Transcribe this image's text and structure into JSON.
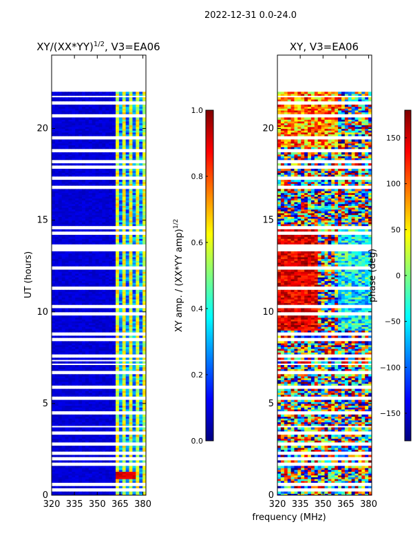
{
  "suptitle": "2022-12-31 0.0-24.0",
  "shared_xlabel": "frequency (MHz)",
  "chart_data": [
    {
      "type": "heatmap",
      "title_main": "XY/(XX*YY)",
      "title_exp": "1/2",
      "title_suffix": ", V3=EA06",
      "xlabel": "",
      "ylabel": "UT (hours)",
      "xlim": [
        320,
        382
      ],
      "ylim": [
        0,
        24
      ],
      "xticks": [
        320,
        335,
        350,
        365,
        380
      ],
      "yticks": [
        0,
        5,
        10,
        15,
        20
      ],
      "colorbar": {
        "label_main": "XY amp. / (XX*YY amp)",
        "label_exp": "1/2",
        "range": [
          0.0,
          1.0
        ],
        "ticks": [
          "0.0",
          "0.2",
          "0.4",
          "0.6",
          "0.8",
          "1.0"
        ],
        "colormap": "jet"
      },
      "data_extent_hours": [
        0.0,
        22.0
      ],
      "gap_hours": [
        0.3,
        0.6,
        1.7,
        2.0,
        2.3,
        2.8,
        3.4,
        3.75,
        4.5,
        5.3,
        5.9,
        6.7,
        7.15,
        7.35,
        7.6,
        8.5,
        8.8,
        9.9,
        10.3,
        11.3,
        12.4,
        13.4,
        13.6,
        14.3,
        14.6,
        16.8,
        17.3,
        17.9,
        18.2,
        18.8,
        19.5,
        20.7,
        21.4,
        21.75
      ],
      "notes": "Low amplitude (~0.05) from 320 to ~362 MHz; bright vertical stripes (~0.3-0.6) between ~363 and ~378 MHz; red patch (~0.9) near 1 h at 363-375 MHz"
    },
    {
      "type": "heatmap",
      "title": "XY, V3=EA06",
      "xlabel": "",
      "ylabel": "",
      "xlim": [
        320,
        382
      ],
      "ylim": [
        0,
        24
      ],
      "xticks": [
        320,
        335,
        350,
        365,
        380
      ],
      "yticks": [
        0,
        5,
        10,
        15,
        20
      ],
      "colorbar": {
        "label": "phase (deg)",
        "range": [
          -180,
          180
        ],
        "ticks": [
          "−150",
          "−100",
          "−50",
          "0",
          "50",
          "100",
          "150"
        ],
        "colormap": "jet"
      },
      "data_extent_hours": [
        0.0,
        22.0
      ],
      "gap_hours": [
        0.3,
        0.6,
        1.7,
        2.0,
        2.3,
        2.8,
        3.4,
        3.75,
        4.5,
        5.3,
        5.9,
        6.7,
        7.15,
        7.35,
        7.6,
        8.5,
        8.8,
        9.9,
        10.3,
        11.3,
        12.4,
        13.4,
        13.6,
        14.3,
        14.6,
        16.8,
        17.3,
        17.9,
        18.2,
        18.8,
        19.5,
        20.7,
        21.4,
        21.75
      ],
      "notes": "Phase noisy across full band; broad red (~150 deg) regions around 10-14 h at 320-345 MHz"
    }
  ]
}
